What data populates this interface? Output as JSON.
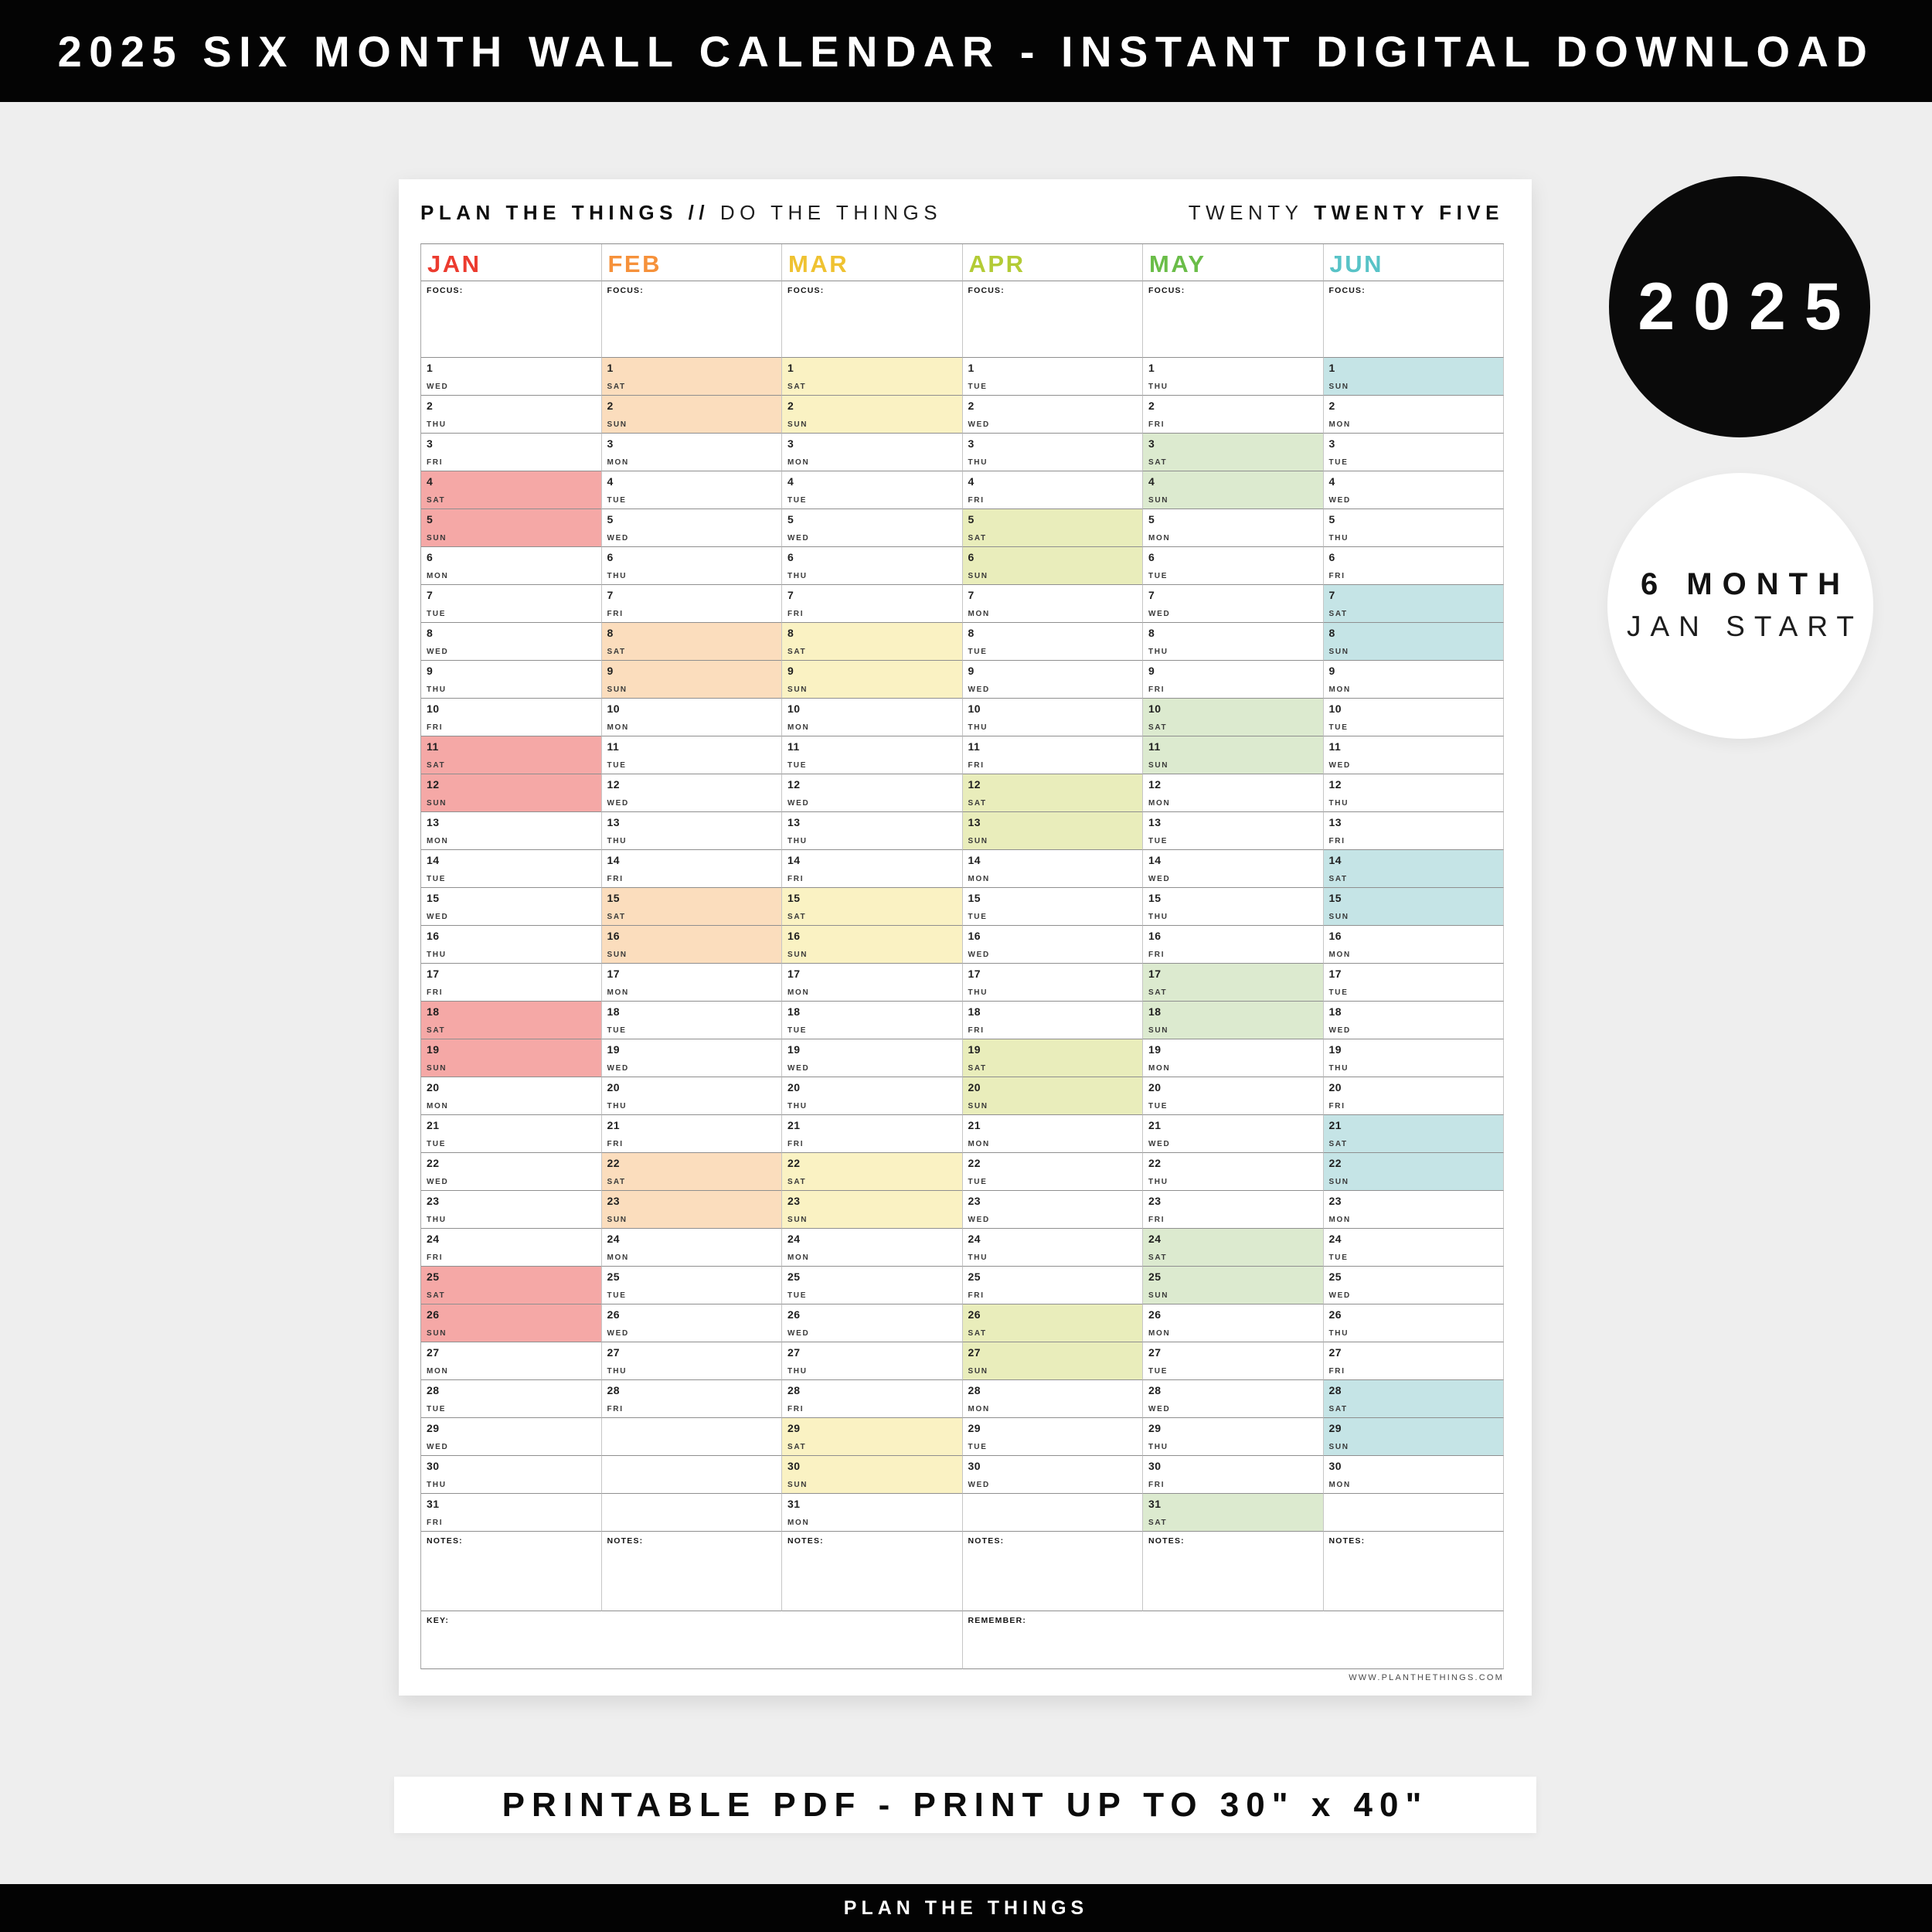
{
  "banner_top": {
    "text": "2025 SIX MONTH WALL CALENDAR - INSTANT DIGITAL DOWNLOAD"
  },
  "badges": {
    "year": {
      "text": "2025",
      "bg": "#0a0a0a",
      "fg": "#ffffff"
    },
    "info": {
      "line1": "6 MONTH",
      "line2": "JAN START",
      "bg": "#ffffff",
      "fg": "#1c1c1c"
    }
  },
  "sheet": {
    "header": {
      "left_bold": "PLAN THE THINGS //",
      "left_light": "DO THE THINGS",
      "right_light": "TWENTY",
      "right_bold": "TWENTY FIVE"
    },
    "focus_label": "FOCUS:",
    "notes_label": "NOTES:",
    "key_label": "KEY:",
    "remember_label": "REMEMBER:",
    "website": "WWW.PLANTHETHINGS.COM",
    "total_rows": 31,
    "weekend_days": [
      "SAT",
      "SUN"
    ],
    "months": [
      {
        "name": "JAN",
        "color": "#EC3B2F",
        "highlight": "#F5A8A6",
        "weekdays": [
          "WED",
          "THU",
          "FRI",
          "SAT",
          "SUN",
          "MON",
          "TUE",
          "WED",
          "THU",
          "FRI",
          "SAT",
          "SUN",
          "MON",
          "TUE",
          "WED",
          "THU",
          "FRI",
          "SAT",
          "SUN",
          "MON",
          "TUE",
          "WED",
          "THU",
          "FRI",
          "SAT",
          "SUN",
          "MON",
          "TUE",
          "WED",
          "THU",
          "FRI"
        ]
      },
      {
        "name": "FEB",
        "color": "#F6913A",
        "highlight": "#FBDDBD",
        "weekdays": [
          "SAT",
          "SUN",
          "MON",
          "TUE",
          "WED",
          "THU",
          "FRI",
          "SAT",
          "SUN",
          "MON",
          "TUE",
          "WED",
          "THU",
          "FRI",
          "SAT",
          "SUN",
          "MON",
          "TUE",
          "WED",
          "THU",
          "FRI",
          "SAT",
          "SUN",
          "MON",
          "TUE",
          "WED",
          "THU",
          "FRI"
        ]
      },
      {
        "name": "MAR",
        "color": "#EFC231",
        "highlight": "#FAF2C3",
        "weekdays": [
          "SAT",
          "SUN",
          "MON",
          "TUE",
          "WED",
          "THU",
          "FRI",
          "SAT",
          "SUN",
          "MON",
          "TUE",
          "WED",
          "THU",
          "FRI",
          "SAT",
          "SUN",
          "MON",
          "TUE",
          "WED",
          "THU",
          "FRI",
          "SAT",
          "SUN",
          "MON",
          "TUE",
          "WED",
          "THU",
          "FRI",
          "SAT",
          "SUN",
          "MON"
        ]
      },
      {
        "name": "APR",
        "color": "#B3CB35",
        "highlight": "#E9EDBB",
        "weekdays": [
          "TUE",
          "WED",
          "THU",
          "FRI",
          "SAT",
          "SUN",
          "MON",
          "TUE",
          "WED",
          "THU",
          "FRI",
          "SAT",
          "SUN",
          "MON",
          "TUE",
          "WED",
          "THU",
          "FRI",
          "SAT",
          "SUN",
          "MON",
          "TUE",
          "WED",
          "THU",
          "FRI",
          "SAT",
          "SUN",
          "MON",
          "TUE",
          "WED"
        ]
      },
      {
        "name": "MAY",
        "color": "#6ABD48",
        "highlight": "#DCEACF",
        "weekdays": [
          "THU",
          "FRI",
          "SAT",
          "SUN",
          "MON",
          "TUE",
          "WED",
          "THU",
          "FRI",
          "SAT",
          "SUN",
          "MON",
          "TUE",
          "WED",
          "THU",
          "FRI",
          "SAT",
          "SUN",
          "MON",
          "TUE",
          "WED",
          "THU",
          "FRI",
          "SAT",
          "SUN",
          "MON",
          "TUE",
          "WED",
          "THU",
          "FRI",
          "SAT"
        ]
      },
      {
        "name": "JUN",
        "color": "#58C3C7",
        "highlight": "#C5E4E6",
        "weekdays": [
          "SUN",
          "MON",
          "TUE",
          "WED",
          "THU",
          "FRI",
          "SAT",
          "SUN",
          "MON",
          "TUE",
          "WED",
          "THU",
          "FRI",
          "SAT",
          "SUN",
          "MON",
          "TUE",
          "WED",
          "THU",
          "FRI",
          "SAT",
          "SUN",
          "MON",
          "TUE",
          "WED",
          "THU",
          "FRI",
          "SAT",
          "SUN",
          "MON"
        ]
      }
    ]
  },
  "banner_bottom": {
    "text": "PRINTABLE PDF - PRINT UP TO 30\" x 40\""
  },
  "footer": {
    "text": "PLAN THE THINGS"
  }
}
